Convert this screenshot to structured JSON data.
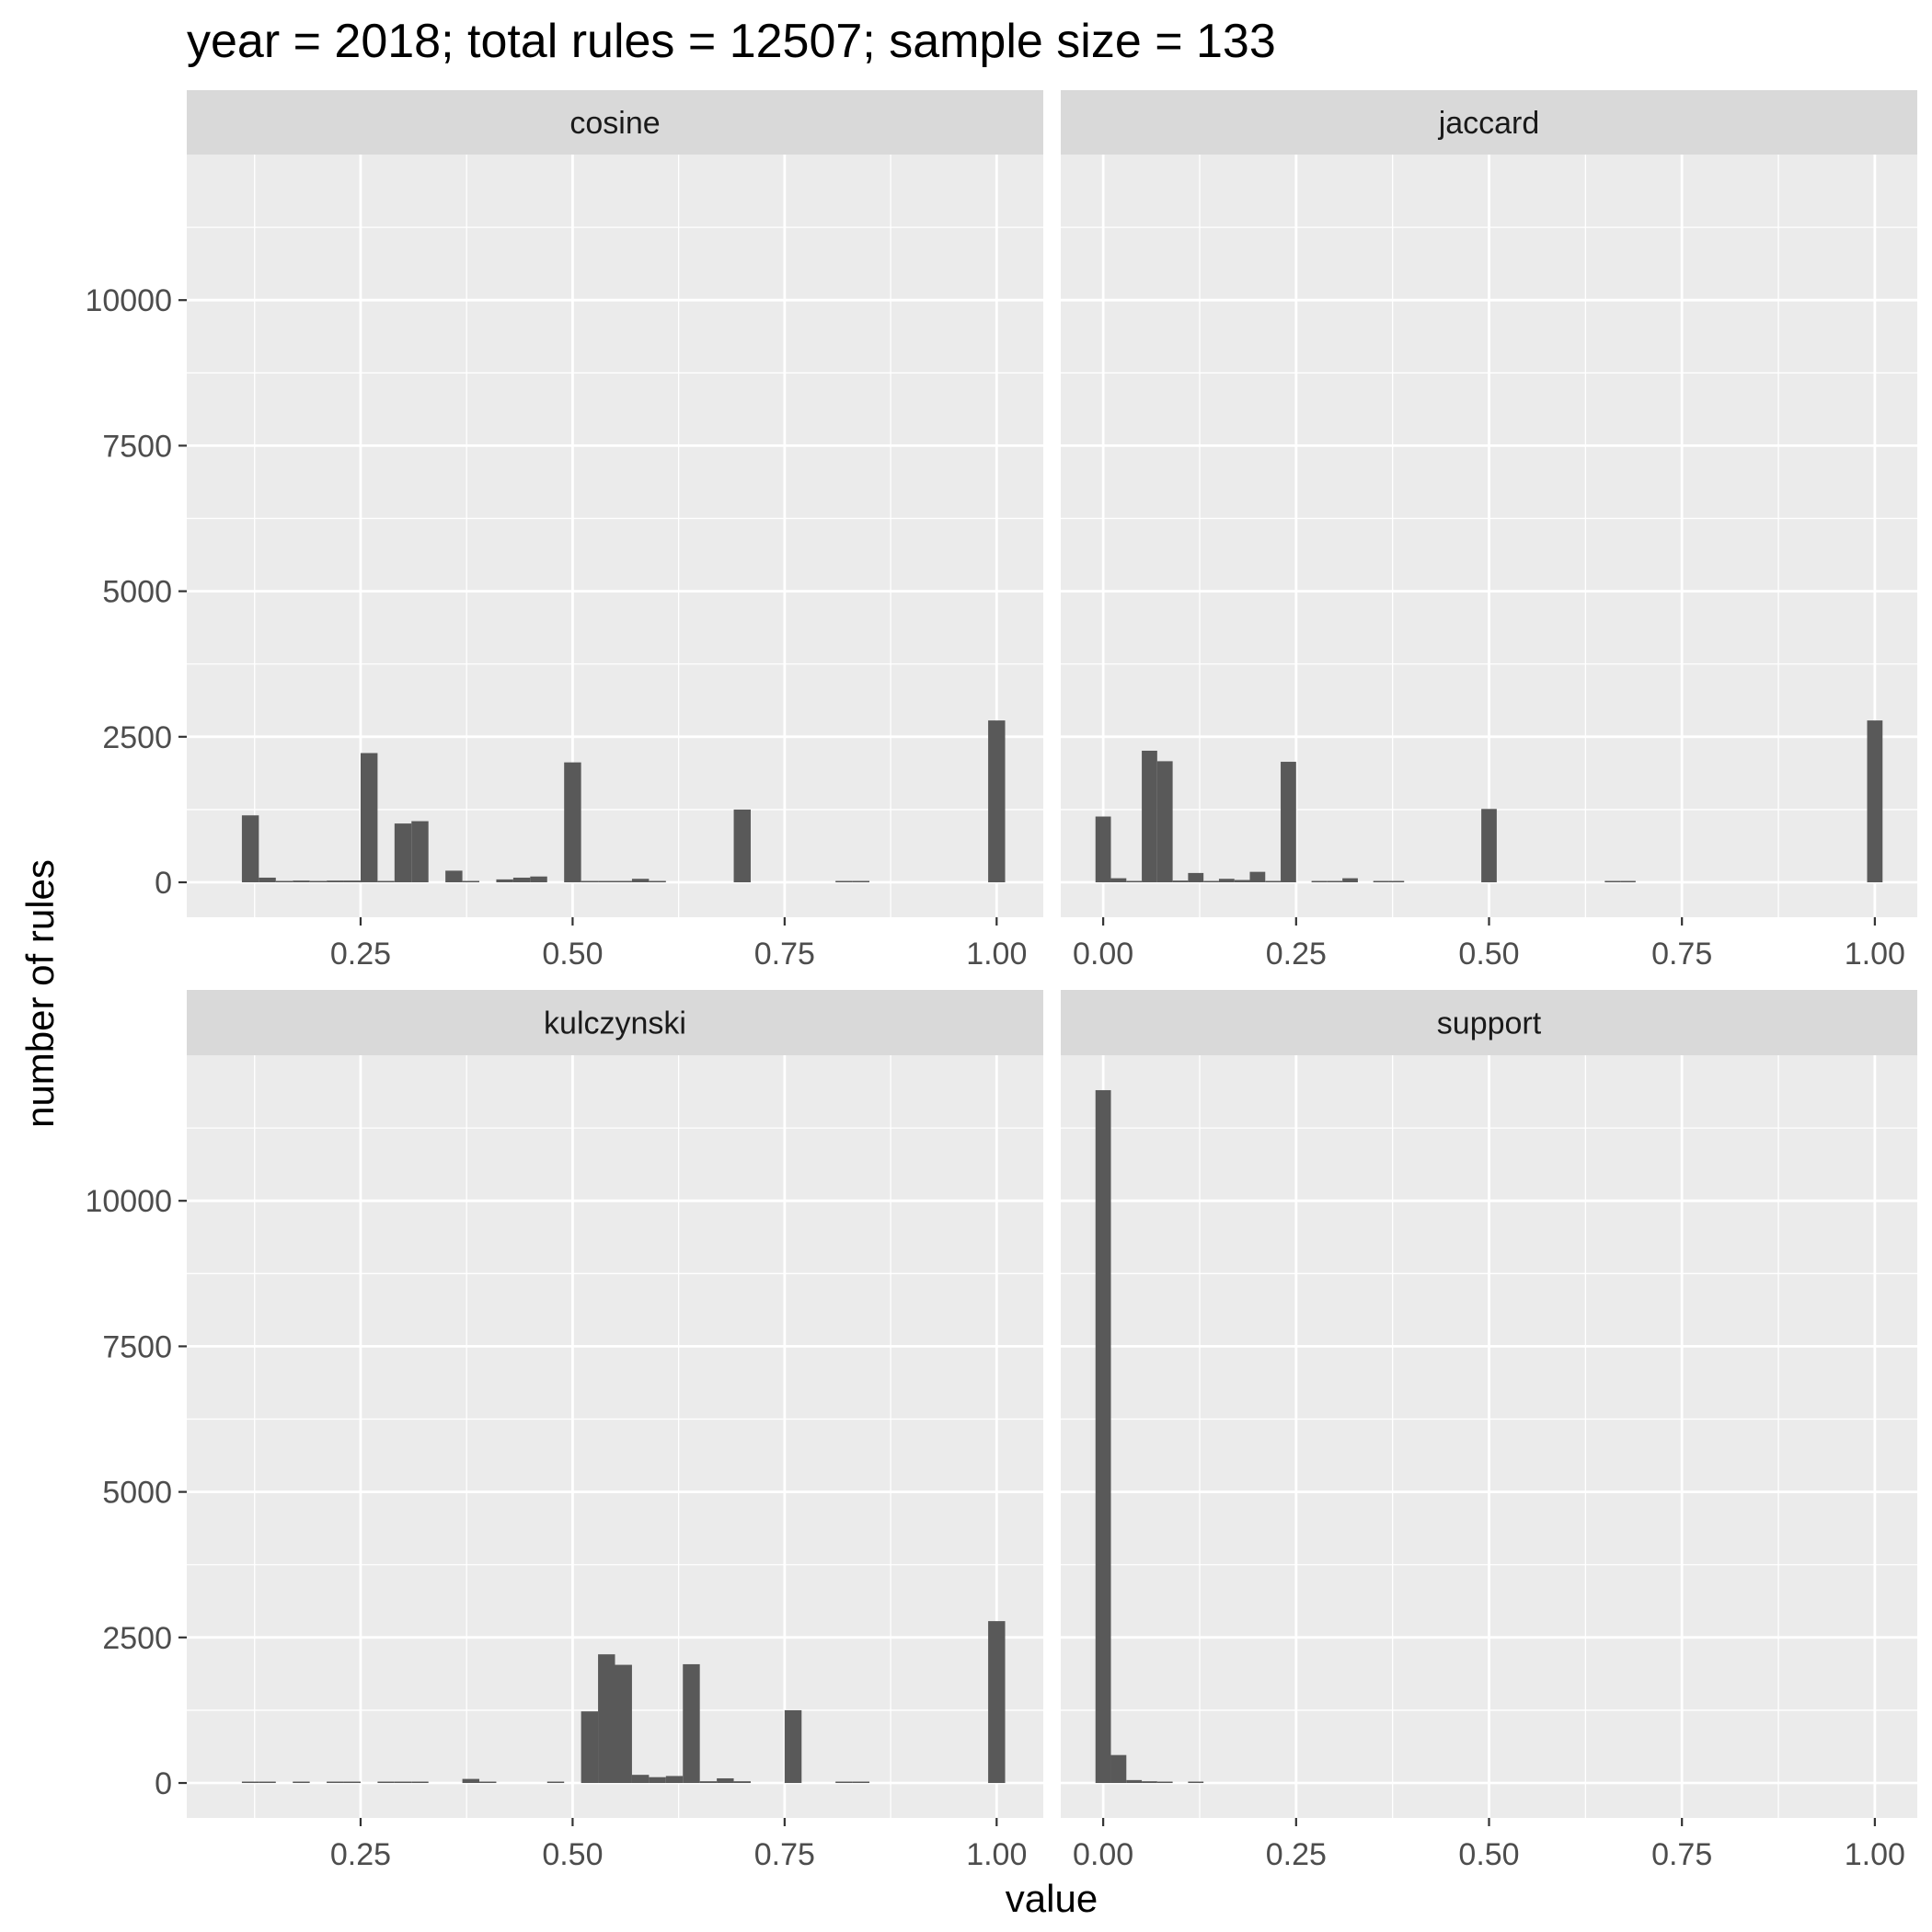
{
  "chart_data": {
    "type": "histogram-facet",
    "title": "year = 2018; total rules = 12507; sample size = 133",
    "xlabel": "value",
    "ylabel": "number of rules",
    "ylim": [
      -600,
      12500
    ],
    "yticks": [
      0,
      2500,
      5000,
      7500,
      10000
    ],
    "yminor": [
      1250,
      3750,
      6250,
      8750,
      11250
    ],
    "bar_color": "#595959",
    "panel_background": "#ebebeb",
    "strip_background": "#d9d9d9",
    "grid_color": "#ffffff",
    "bin_width": 0.02,
    "panels": [
      {
        "name": "cosine",
        "xlim": [
          0.045,
          1.055
        ],
        "xticks": [
          0.25,
          0.5,
          0.75,
          1.0
        ],
        "xticklabels": [
          "0.25",
          "0.50",
          "0.75",
          "1.00"
        ],
        "xminor": [
          0.125,
          0.375,
          0.625,
          0.875
        ],
        "bars": [
          {
            "x": 0.12,
            "y": 1150
          },
          {
            "x": 0.14,
            "y": 80
          },
          {
            "x": 0.16,
            "y": 10
          },
          {
            "x": 0.18,
            "y": 30
          },
          {
            "x": 0.2,
            "y": 20
          },
          {
            "x": 0.22,
            "y": 30
          },
          {
            "x": 0.24,
            "y": 30
          },
          {
            "x": 0.26,
            "y": 2220
          },
          {
            "x": 0.28,
            "y": 10
          },
          {
            "x": 0.3,
            "y": 1010
          },
          {
            "x": 0.32,
            "y": 1050
          },
          {
            "x": 0.36,
            "y": 200
          },
          {
            "x": 0.38,
            "y": 20
          },
          {
            "x": 0.42,
            "y": 50
          },
          {
            "x": 0.44,
            "y": 80
          },
          {
            "x": 0.46,
            "y": 100
          },
          {
            "x": 0.5,
            "y": 2060
          },
          {
            "x": 0.52,
            "y": 20
          },
          {
            "x": 0.54,
            "y": 10
          },
          {
            "x": 0.56,
            "y": 20
          },
          {
            "x": 0.58,
            "y": 60
          },
          {
            "x": 0.6,
            "y": 20
          },
          {
            "x": 0.7,
            "y": 1250
          },
          {
            "x": 0.82,
            "y": 20
          },
          {
            "x": 0.84,
            "y": 10
          },
          {
            "x": 1.0,
            "y": 2780
          }
        ]
      },
      {
        "name": "jaccard",
        "xlim": [
          -0.055,
          1.055
        ],
        "xticks": [
          0.0,
          0.25,
          0.5,
          0.75,
          1.0
        ],
        "xticklabels": [
          "0.00",
          "0.25",
          "0.50",
          "0.75",
          "1.00"
        ],
        "xminor": [
          0.125,
          0.375,
          0.625,
          0.875
        ],
        "bars": [
          {
            "x": 0.0,
            "y": 1130
          },
          {
            "x": 0.02,
            "y": 70
          },
          {
            "x": 0.04,
            "y": 20
          },
          {
            "x": 0.06,
            "y": 2260
          },
          {
            "x": 0.08,
            "y": 2080
          },
          {
            "x": 0.1,
            "y": 30
          },
          {
            "x": 0.12,
            "y": 160
          },
          {
            "x": 0.14,
            "y": 20
          },
          {
            "x": 0.16,
            "y": 60
          },
          {
            "x": 0.18,
            "y": 40
          },
          {
            "x": 0.2,
            "y": 180
          },
          {
            "x": 0.22,
            "y": 20
          },
          {
            "x": 0.24,
            "y": 2070
          },
          {
            "x": 0.28,
            "y": 20
          },
          {
            "x": 0.3,
            "y": 20
          },
          {
            "x": 0.32,
            "y": 70
          },
          {
            "x": 0.36,
            "y": 10
          },
          {
            "x": 0.38,
            "y": 10
          },
          {
            "x": 0.5,
            "y": 1260
          },
          {
            "x": 0.66,
            "y": 20
          },
          {
            "x": 0.68,
            "y": 10
          },
          {
            "x": 1.0,
            "y": 2780
          }
        ]
      },
      {
        "name": "kulczynski",
        "xlim": [
          0.045,
          1.055
        ],
        "xticks": [
          0.25,
          0.5,
          0.75,
          1.0
        ],
        "xticklabels": [
          "0.25",
          "0.50",
          "0.75",
          "1.00"
        ],
        "xminor": [
          0.125,
          0.375,
          0.625,
          0.875
        ],
        "bars": [
          {
            "x": 0.12,
            "y": 10
          },
          {
            "x": 0.14,
            "y": 10
          },
          {
            "x": 0.18,
            "y": 10
          },
          {
            "x": 0.22,
            "y": 20
          },
          {
            "x": 0.24,
            "y": 10
          },
          {
            "x": 0.28,
            "y": 20
          },
          {
            "x": 0.3,
            "y": 10
          },
          {
            "x": 0.32,
            "y": 10
          },
          {
            "x": 0.38,
            "y": 70
          },
          {
            "x": 0.4,
            "y": 10
          },
          {
            "x": 0.48,
            "y": 20
          },
          {
            "x": 0.52,
            "y": 1230
          },
          {
            "x": 0.54,
            "y": 2210
          },
          {
            "x": 0.56,
            "y": 2030
          },
          {
            "x": 0.58,
            "y": 140
          },
          {
            "x": 0.6,
            "y": 100
          },
          {
            "x": 0.62,
            "y": 120
          },
          {
            "x": 0.64,
            "y": 2040
          },
          {
            "x": 0.66,
            "y": 30
          },
          {
            "x": 0.68,
            "y": 80
          },
          {
            "x": 0.7,
            "y": 30
          },
          {
            "x": 0.76,
            "y": 1250
          },
          {
            "x": 0.82,
            "y": 10
          },
          {
            "x": 0.84,
            "y": 20
          },
          {
            "x": 1.0,
            "y": 2780
          }
        ]
      },
      {
        "name": "support",
        "xlim": [
          -0.055,
          1.055
        ],
        "xticks": [
          0.0,
          0.25,
          0.5,
          0.75,
          1.0
        ],
        "xticklabels": [
          "0.00",
          "0.25",
          "0.50",
          "0.75",
          "1.00"
        ],
        "xminor": [
          0.125,
          0.375,
          0.625,
          0.875
        ],
        "bars": [
          {
            "x": 0.0,
            "y": 11900
          },
          {
            "x": 0.02,
            "y": 480
          },
          {
            "x": 0.04,
            "y": 50
          },
          {
            "x": 0.06,
            "y": 30
          },
          {
            "x": 0.08,
            "y": 20
          },
          {
            "x": 0.12,
            "y": 10
          }
        ]
      }
    ]
  }
}
